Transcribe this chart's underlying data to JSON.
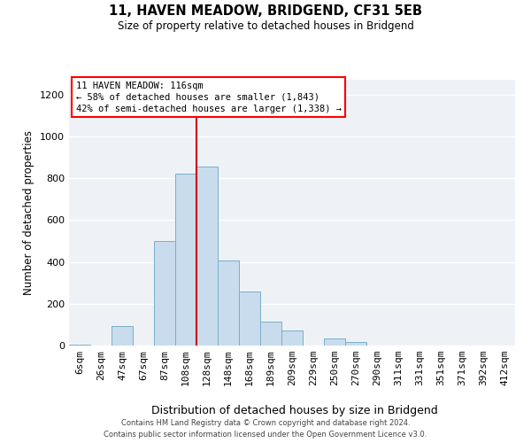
{
  "title": "11, HAVEN MEADOW, BRIDGEND, CF31 5EB",
  "subtitle": "Size of property relative to detached houses in Bridgend",
  "xlabel": "Distribution of detached houses by size in Bridgend",
  "ylabel": "Number of detached properties",
  "bar_labels": [
    "6sqm",
    "26sqm",
    "47sqm",
    "67sqm",
    "87sqm",
    "108sqm",
    "128sqm",
    "148sqm",
    "168sqm",
    "189sqm",
    "209sqm",
    "229sqm",
    "250sqm",
    "270sqm",
    "290sqm",
    "311sqm",
    "331sqm",
    "351sqm",
    "371sqm",
    "392sqm",
    "412sqm"
  ],
  "bar_heights": [
    5,
    0,
    95,
    0,
    500,
    820,
    855,
    405,
    260,
    115,
    70,
    0,
    35,
    15,
    0,
    0,
    0,
    0,
    0,
    0,
    0
  ],
  "bar_color": "#c8dced",
  "bar_edge_color": "#7aaec8",
  "vline_x": 5.5,
  "vline_color": "#cc0000",
  "ylim": [
    0,
    1270
  ],
  "yticks": [
    0,
    200,
    400,
    600,
    800,
    1000,
    1200
  ],
  "annotation_title": "11 HAVEN MEADOW: 116sqm",
  "annotation_line1": "← 58% of detached houses are smaller (1,843)",
  "annotation_line2": "42% of semi-detached houses are larger (1,338) →",
  "footer_line1": "Contains HM Land Registry data © Crown copyright and database right 2024.",
  "footer_line2": "Contains public sector information licensed under the Open Government Licence v3.0.",
  "background_color": "#eef2f7"
}
